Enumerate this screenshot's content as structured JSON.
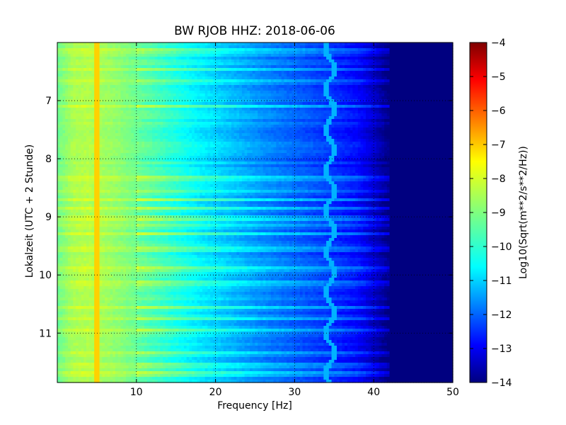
{
  "chart_data": {
    "type": "heatmap",
    "title": "BW RJOB HHZ: 2018-06-06",
    "xlabel": "Frequency [Hz]",
    "ylabel": "Lokalzeit (UTC + 2 Stunde)",
    "colorbar_label": "Log10(Sqrt(m**2/s**2/Hz))",
    "xlim": [
      0,
      50
    ],
    "ylim": [
      11.85,
      6.0
    ],
    "y_inverted": true,
    "x_ticks": [
      10,
      20,
      30,
      40,
      50
    ],
    "y_ticks": [
      7,
      8,
      9,
      10,
      11
    ],
    "x_tick_labels": [
      "10",
      "20",
      "30",
      "40",
      "50"
    ],
    "y_tick_labels": [
      "7",
      "8",
      "9",
      "10",
      "11"
    ],
    "colorbar_range": [
      -14,
      -4
    ],
    "colorbar_ticks": [
      -4,
      -5,
      -6,
      -7,
      -8,
      -9,
      -10,
      -11,
      -12,
      -13,
      -14
    ],
    "colorbar_tick_labels": [
      "−4",
      "−5",
      "−6",
      "−7",
      "−8",
      "−9",
      "−10",
      "−11",
      "−12",
      "−13",
      "−14"
    ],
    "colormap": "jet",
    "grid": true,
    "spectral_profile": {
      "freq_hz": [
        0,
        2,
        4,
        6,
        8,
        10,
        14,
        18,
        22,
        26,
        30,
        34,
        38,
        40,
        42,
        44,
        50
      ],
      "log10_amplitude": [
        -9.2,
        -8.6,
        -8.5,
        -8.7,
        -8.9,
        -9.2,
        -9.8,
        -10.4,
        -10.9,
        -11.4,
        -11.8,
        -12.2,
        -12.7,
        -13.3,
        -14,
        -14,
        -14
      ]
    },
    "features": [
      {
        "name": "narrowband line",
        "freq_hz": 5.0,
        "log10_amplitude": -7.3
      },
      {
        "name": "wandering tone",
        "freq_hz": 34.5,
        "log10_amplitude": -11.0
      }
    ],
    "broadband_events_hour": [
      6.15,
      6.45,
      6.65,
      7.1,
      8.35,
      8.55,
      8.7,
      8.85,
      9.0,
      9.05,
      9.15,
      9.3,
      9.55,
      9.9,
      10.15,
      10.55,
      10.75,
      10.95,
      11.35,
      11.55,
      11.7
    ]
  }
}
